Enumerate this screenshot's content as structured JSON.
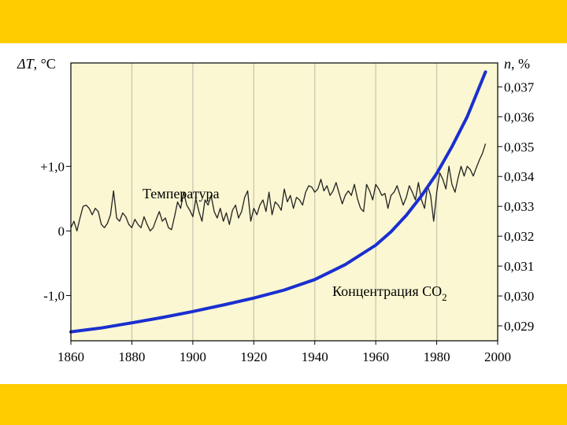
{
  "colors": {
    "band": "#ffcc00",
    "plot_bg": "#fbf7d2",
    "grid": "#c8c8b0",
    "temp_line": "#222222",
    "co2_line": "#1a2fd0"
  },
  "chart_data": {
    "type": "line",
    "x_ticks": [
      1860,
      1880,
      1900,
      1920,
      1940,
      1960,
      1980,
      2000
    ],
    "xlim": [
      1860,
      2000
    ],
    "y_left": {
      "label_symbol": "ΔT",
      "label_unit": ", °C",
      "ticks": [
        "+1,0",
        "0",
        "-1,0"
      ],
      "tick_values": [
        1.0,
        0,
        -1.0
      ],
      "range": [
        -1.7,
        2.6
      ]
    },
    "y_right": {
      "label_symbol": "n",
      "label_unit": ", %",
      "ticks": [
        "0,037",
        "0,036",
        "0,035",
        "0,034",
        "0,033",
        "0,032",
        "0,031",
        "0,030",
        "0,029"
      ],
      "tick_values": [
        0.037,
        0.036,
        0.035,
        0.034,
        0.033,
        0.032,
        0.031,
        0.03,
        0.029
      ],
      "range": [
        0.0285,
        0.0378
      ]
    },
    "grid": "vertical",
    "series": [
      {
        "name": "Температура",
        "axis": "left",
        "x": [
          1860,
          1861,
          1862,
          1863,
          1864,
          1865,
          1866,
          1867,
          1868,
          1869,
          1870,
          1871,
          1872,
          1873,
          1874,
          1875,
          1876,
          1877,
          1878,
          1879,
          1880,
          1881,
          1882,
          1883,
          1884,
          1885,
          1886,
          1887,
          1888,
          1889,
          1890,
          1891,
          1892,
          1893,
          1894,
          1895,
          1896,
          1897,
          1898,
          1899,
          1900,
          1901,
          1902,
          1903,
          1904,
          1905,
          1906,
          1907,
          1908,
          1909,
          1910,
          1911,
          1912,
          1913,
          1914,
          1915,
          1916,
          1917,
          1918,
          1919,
          1920,
          1921,
          1922,
          1923,
          1924,
          1925,
          1926,
          1927,
          1928,
          1929,
          1930,
          1931,
          1932,
          1933,
          1934,
          1935,
          1936,
          1937,
          1938,
          1939,
          1940,
          1941,
          1942,
          1943,
          1944,
          1945,
          1946,
          1947,
          1948,
          1949,
          1950,
          1951,
          1952,
          1953,
          1954,
          1955,
          1956,
          1957,
          1958,
          1959,
          1960,
          1961,
          1962,
          1963,
          1964,
          1965,
          1966,
          1967,
          1968,
          1969,
          1970,
          1971,
          1972,
          1973,
          1974,
          1975,
          1976,
          1977,
          1978,
          1979,
          1980,
          1981,
          1982,
          1983,
          1984,
          1985,
          1986,
          1987,
          1988,
          1989,
          1990,
          1991,
          1992,
          1993,
          1994,
          1995,
          1996
        ],
        "values": [
          0.05,
          0.15,
          0.0,
          0.2,
          0.38,
          0.4,
          0.35,
          0.25,
          0.35,
          0.3,
          0.1,
          0.05,
          0.12,
          0.25,
          0.62,
          0.2,
          0.15,
          0.28,
          0.22,
          0.1,
          0.05,
          0.18,
          0.1,
          0.05,
          0.22,
          0.1,
          0.0,
          0.05,
          0.18,
          0.3,
          0.15,
          0.2,
          0.05,
          0.02,
          0.22,
          0.45,
          0.35,
          0.6,
          0.4,
          0.32,
          0.22,
          0.5,
          0.3,
          0.15,
          0.48,
          0.4,
          0.55,
          0.3,
          0.2,
          0.35,
          0.15,
          0.28,
          0.1,
          0.32,
          0.4,
          0.2,
          0.3,
          0.52,
          0.62,
          0.15,
          0.35,
          0.25,
          0.4,
          0.48,
          0.3,
          0.6,
          0.25,
          0.45,
          0.4,
          0.32,
          0.65,
          0.45,
          0.55,
          0.35,
          0.52,
          0.48,
          0.4,
          0.6,
          0.7,
          0.68,
          0.6,
          0.65,
          0.8,
          0.62,
          0.7,
          0.55,
          0.62,
          0.75,
          0.58,
          0.42,
          0.55,
          0.62,
          0.55,
          0.72,
          0.5,
          0.35,
          0.3,
          0.72,
          0.62,
          0.48,
          0.72,
          0.65,
          0.55,
          0.58,
          0.35,
          0.55,
          0.6,
          0.7,
          0.55,
          0.4,
          0.52,
          0.7,
          0.6,
          0.48,
          0.75,
          0.48,
          0.35,
          0.7,
          0.55,
          0.15,
          0.6,
          0.9,
          0.8,
          0.65,
          1.0,
          0.72,
          0.6,
          0.82,
          1.0,
          0.85,
          1.0,
          0.95,
          0.85,
          0.98,
          1.1,
          1.2,
          1.35
        ]
      },
      {
        "name": "Концентрация CO",
        "name_subscript": "2",
        "axis": "right",
        "x": [
          1860,
          1870,
          1880,
          1890,
          1900,
          1910,
          1920,
          1930,
          1940,
          1950,
          1960,
          1965,
          1970,
          1975,
          1980,
          1985,
          1990,
          1996
        ],
        "values": [
          0.0288,
          0.02893,
          0.0291,
          0.02928,
          0.02948,
          0.0297,
          0.02993,
          0.0302,
          0.03055,
          0.03105,
          0.0317,
          0.03215,
          0.0327,
          0.03335,
          0.0341,
          0.035,
          0.036,
          0.0375
        ]
      }
    ]
  }
}
